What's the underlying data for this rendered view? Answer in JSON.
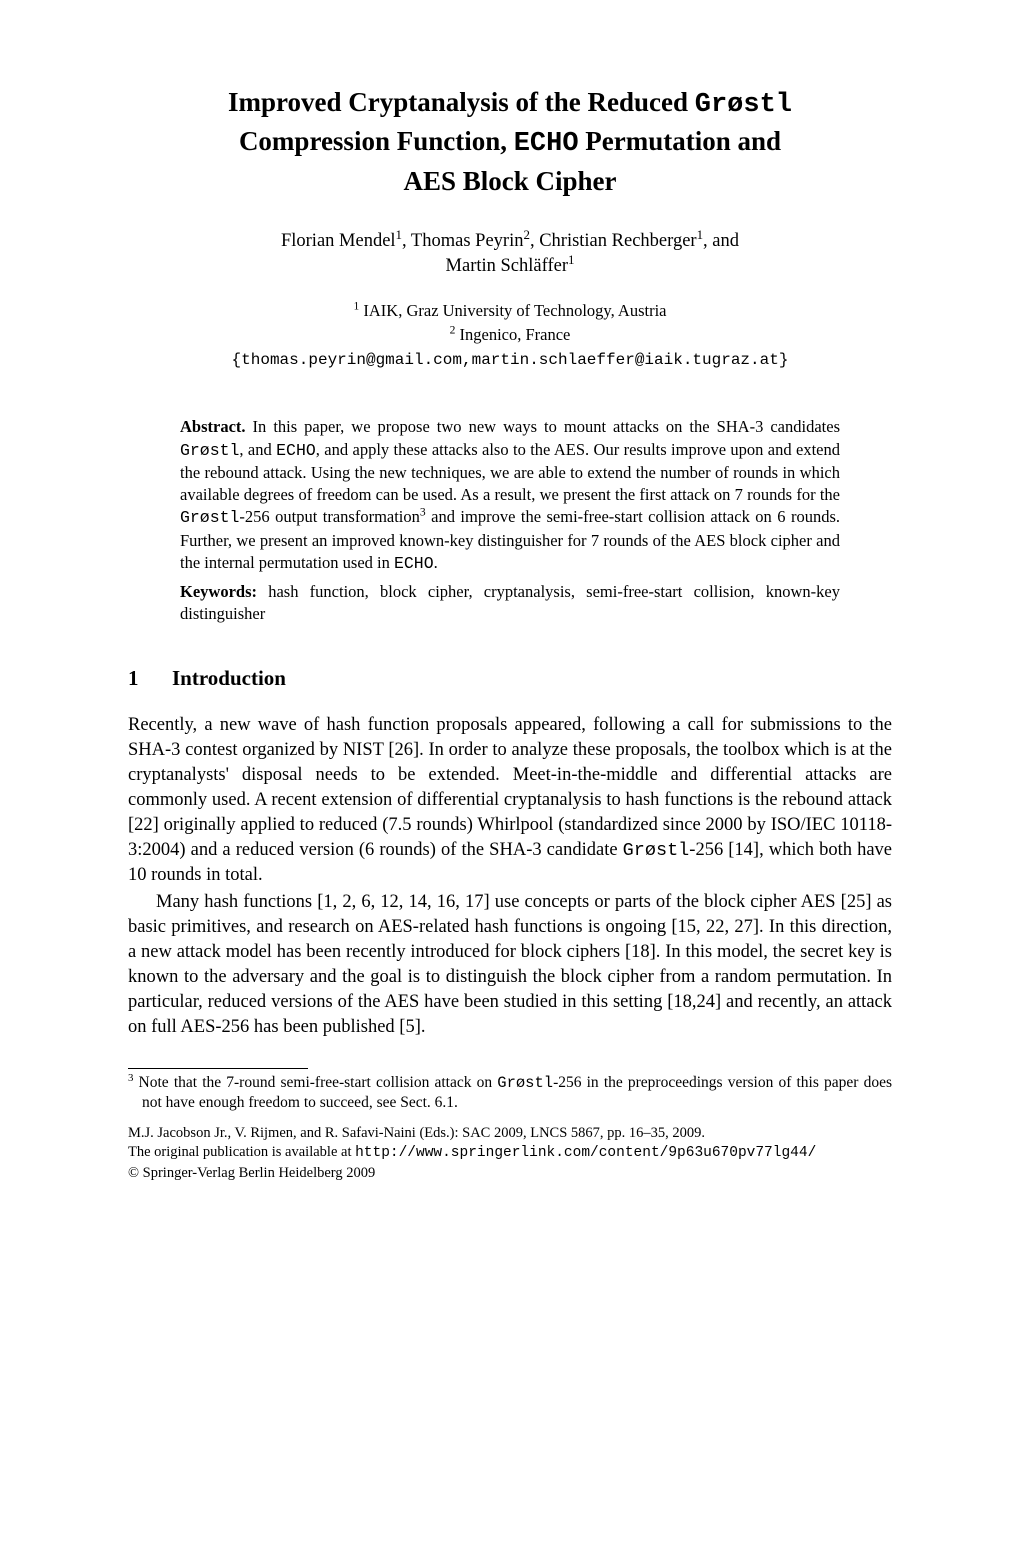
{
  "title": {
    "line1": "Improved Cryptanalysis of the Reduced Grøstl",
    "line2": "Compression Function, ECHO Permutation and",
    "line3": "AES Block Cipher",
    "mono1": "Grøstl",
    "mono2": "ECHO"
  },
  "authors": {
    "text_pre": "Florian Mendel",
    "a1_sup": "1",
    "mid1": ", Thomas Peyrin",
    "a2_sup": "2",
    "mid2": ", Christian Rechberger",
    "a3_sup": "1",
    "mid3": ", and",
    "line2_pre": "Martin Schläffer",
    "a4_sup": "1"
  },
  "affil": {
    "l1_sup": "1",
    "l1": " IAIK, Graz University of Technology, Austria",
    "l2_sup": "2",
    "l2": " Ingenico, France",
    "emails": "{thomas.peyrin@gmail.com,martin.schlaeffer@iaik.tugraz.at}"
  },
  "abstract": {
    "lead": "Abstract.",
    "body_a": " In this paper, we propose two new ways to mount attacks on the SHA-3 candidates ",
    "g1": "Grøstl",
    "body_b": ", and ",
    "e1": "ECHO",
    "body_c": ", and apply these attacks also to the AES. Our results improve upon and extend the rebound attack. Using the new techniques, we are able to extend the number of rounds in which available degrees of freedom can be used. As a result, we present the first attack on 7 rounds for the ",
    "g2": "Grøstl",
    "body_d": "-256 output transformation",
    "sup3": "3",
    "body_e": " and improve the semi-free-start collision attack on 6 rounds. Further, we present an improved known-key distinguisher for 7 rounds of the AES block cipher and the internal permutation used in ",
    "e2": "ECHO",
    "body_f": "."
  },
  "keywords": {
    "lead": "Keywords:",
    "body": " hash function, block cipher, cryptanalysis, semi-free-start collision, known-key distinguisher"
  },
  "section1": {
    "num": "1",
    "title": "Introduction"
  },
  "intro": {
    "p1_a": "Recently, a new wave of hash function proposals appeared, following a call for submissions to the SHA-3 contest organized by NIST [26]. In order to analyze these proposals, the toolbox which is at the cryptanalysts' disposal needs to be extended. Meet-in-the-middle and differential attacks are commonly used. A recent extension of differential cryptanalysis to hash functions is the rebound attack [22] originally applied to reduced (7.5 rounds) Whirlpool (standardized since 2000 by ISO/IEC 10118-3:2004) and a reduced version (6 rounds) of the SHA-3 candidate ",
    "p1_g": "Grøstl",
    "p1_b": "-256 [14], which both have 10 rounds in total.",
    "p2": "Many hash functions [1, 2, 6, 12, 14, 16, 17] use concepts or parts of the block cipher AES [25] as basic primitives, and research on AES-related hash functions is ongoing [15, 22, 27]. In this direction, a new attack model has been recently introduced for block ciphers [18]. In this model, the secret key is known to the adversary and the goal is to distinguish the block cipher from a random permutation. In particular, reduced versions of the AES have been studied in this setting [18,24] and recently, an attack on full AES-256 has been published [5]."
  },
  "footnote": {
    "sup": "3",
    "text_a": " Note that the 7-round semi-free-start collision attack on ",
    "g": "Grøstl",
    "text_b": "-256 in the preproceedings version of this paper does not have enough freedom to succeed, see Sect. 6.1."
  },
  "copyright": {
    "l1": "M.J. Jacobson Jr., V. Rijmen, and R. Safavi-Naini (Eds.): SAC 2009, LNCS 5867, pp. 16–35, 2009.",
    "l2_a": "The original publication is available at ",
    "l2_url": "http://www.springerlink.com/content/9p63u670pv77lg44/",
    "l3": "© Springer-Verlag Berlin Heidelberg 2009"
  }
}
